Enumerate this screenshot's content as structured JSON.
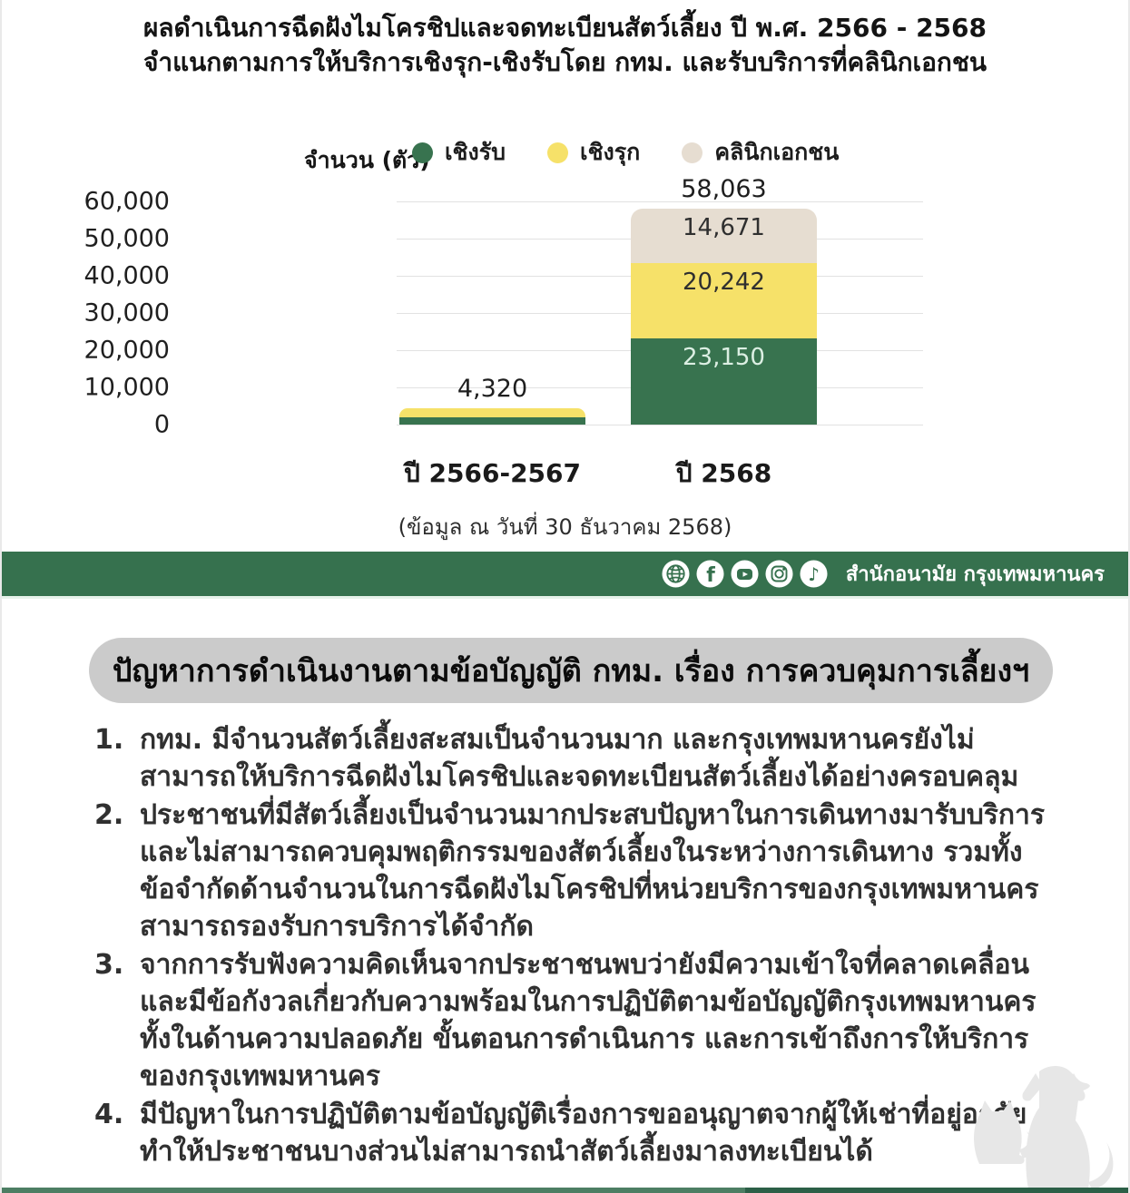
{
  "header": {
    "title_line1": "ผลดำเนินการฉีดฝังไมโครชิปและจดทะเบียนสัตว์เลี้ยง ปี พ.ศ. 2566 - 2568",
    "title_line2": "จำแนกตามการให้บริการเชิงรุก-เชิงรับโดย กทม. และรับบริการที่คลินิกเอกชน"
  },
  "chart_data": {
    "type": "bar",
    "stacked": true,
    "title": "ผลดำเนินการฉีดฝังไมโครชิปและจดทะเบียนสัตว์เลี้ยง ปี พ.ศ. 2566 - 2568 จำแนกตามการให้บริการเชิงรุก-เชิงรับโดย กทม. และรับบริการที่คลินิกเอกชน",
    "categories": [
      "ปี 2566-2567",
      "ปี 2568"
    ],
    "series": [
      {
        "name": "เชิงรับ",
        "color": "#38734F",
        "label_color": "#DCEFE3",
        "values": [
          1900,
          23150
        ]
      },
      {
        "name": "เชิงรุก",
        "color": "#F6E169",
        "label_color": "#2F2F2F",
        "values": [
          2420,
          20242
        ]
      },
      {
        "name": "คลินิกเอกชน",
        "color": "#E6DDD1",
        "label_color": "#2F2F2F",
        "values": [
          0,
          14671
        ]
      }
    ],
    "totals": [
      4320,
      58063
    ],
    "segment_labels_shown": [
      [
        null,
        null,
        null
      ],
      [
        "23,150",
        "20,242",
        "14,671"
      ]
    ],
    "total_labels": [
      "4,320",
      "58,063"
    ],
    "ylabel": "จำนวน (ตัว)",
    "ylim": [
      0,
      60000
    ],
    "yticks": [
      0,
      10000,
      20000,
      30000,
      40000,
      50000,
      60000
    ],
    "grid": true,
    "legend_position": "top",
    "note": "(ข้อมูล ณ วันที่ 30 ธันวาคม 2568)"
  },
  "banner": {
    "org_name": "สำนักอนามัย กรุงเทพมหานคร",
    "icons": [
      "website-globe",
      "facebook",
      "youtube",
      "instagram",
      "tiktok"
    ]
  },
  "problems": {
    "heading": "ปัญหาการดำเนินงานตามข้อบัญญัติ กทม. เรื่อง การควบคุมการเลี้ยงฯ",
    "items": [
      {
        "num": "1.",
        "text": "กทม. มีจำนวนสัตว์เลี้ยงสะสมเป็นจำนวนมาก และกรุงเทพมหานครยังไม่สามารถให้บริการฉีดฝังไมโครชิปและจดทะเบียนสัตว์เลี้ยงได้อย่างครอบคลุม"
      },
      {
        "num": "2.",
        "text": "ประชาชนที่มีสัตว์เลี้ยงเป็นจำนวนมากประสบปัญหาในการเดินทางมารับบริการ และไม่สามารถควบคุมพฤติกรรมของสัตว์เลี้ยงในระหว่างการเดินทาง รวมทั้งข้อจำกัดด้านจำนวนในการฉีดฝังไมโครชิปที่หน่วยบริการของกรุงเทพมหานครสามารถรองรับการบริการได้จำกัด"
      },
      {
        "num": "3.",
        "text": "จากการรับฟังความคิดเห็นจากประชาชนพบว่ายังมีความเข้าใจที่คลาดเคลื่อน และมีข้อกังวลเกี่ยวกับความพร้อมในการปฏิบัติตามข้อบัญญัติกรุงเทพมหานคร ทั้งในด้านความปลอดภัย ขั้นตอนการดำเนินการ และการเข้าถึงการให้บริการของกรุงเทพมหานคร"
      },
      {
        "num": "4.",
        "text": "มีปัญหาในการปฏิบัติตามข้อบัญญัติเรื่องการขออนุญาตจากผู้ให้เช่าที่อยู่อาศัย ทำให้ประชาชนบางส่วนไม่สามารถนำสัตว์เลี้ยงมาลงทะเบียนได้"
      }
    ]
  },
  "colors": {
    "banner_green": "#36714E",
    "bar_green": "#38734F",
    "bar_yellow": "#F6E169",
    "bar_beige": "#E6DDD1",
    "pill_gray": "#CBCBCB"
  }
}
